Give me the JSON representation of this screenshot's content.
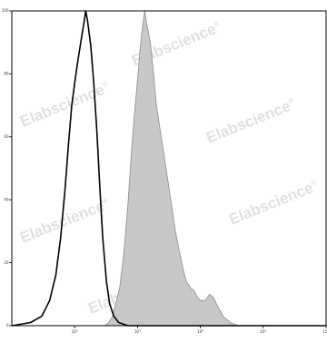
{
  "watermark": {
    "text": "Elabscience",
    "mark": "®",
    "color": "#d9d9d9"
  },
  "chart_data": {
    "type": "area",
    "title": "",
    "xlabel": "",
    "ylabel": "",
    "x_scale": "log",
    "xlim": [
      10,
      1000000
    ],
    "ylim": [
      0,
      100
    ],
    "y_ticks": [
      0,
      20,
      40,
      60,
      80,
      100
    ],
    "x_ticks": [
      100,
      1000,
      10000,
      100000,
      1000000
    ],
    "grid": false,
    "legend": "none",
    "series": [
      {
        "style": "outline",
        "color": "#000000",
        "points": [
          [
            10,
            0
          ],
          [
            20,
            1
          ],
          [
            30,
            3
          ],
          [
            40,
            8
          ],
          [
            50,
            16
          ],
          [
            60,
            28
          ],
          [
            70,
            43
          ],
          [
            80,
            58
          ],
          [
            90,
            70
          ],
          [
            100,
            77
          ],
          [
            110,
            83
          ],
          [
            125,
            90
          ],
          [
            140,
            96
          ],
          [
            150,
            100
          ],
          [
            160,
            97
          ],
          [
            180,
            89
          ],
          [
            200,
            78
          ],
          [
            225,
            62
          ],
          [
            250,
            45
          ],
          [
            280,
            28
          ],
          [
            320,
            14
          ],
          [
            360,
            7
          ],
          [
            420,
            3
          ],
          [
            500,
            1
          ],
          [
            700,
            0
          ],
          [
            1000000,
            0
          ]
        ]
      },
      {
        "style": "filled",
        "color": "#c8c8c8",
        "edge_color": "#8c8c8c",
        "points": [
          [
            300,
            0
          ],
          [
            350,
            1
          ],
          [
            400,
            3
          ],
          [
            450,
            7
          ],
          [
            520,
            12
          ],
          [
            600,
            22
          ],
          [
            700,
            38
          ],
          [
            800,
            55
          ],
          [
            900,
            68
          ],
          [
            1000,
            78
          ],
          [
            1100,
            88
          ],
          [
            1200,
            95
          ],
          [
            1300,
            100
          ],
          [
            1400,
            96
          ],
          [
            1600,
            90
          ],
          [
            1800,
            80
          ],
          [
            2000,
            70
          ],
          [
            2300,
            62
          ],
          [
            2600,
            55
          ],
          [
            3000,
            47
          ],
          [
            3500,
            38
          ],
          [
            4000,
            30
          ],
          [
            4600,
            24
          ],
          [
            5300,
            18
          ],
          [
            6000,
            14
          ],
          [
            7000,
            12
          ],
          [
            8000,
            11
          ],
          [
            9000,
            9
          ],
          [
            10000,
            8
          ],
          [
            12000,
            8
          ],
          [
            14000,
            10
          ],
          [
            16000,
            9
          ],
          [
            19000,
            6
          ],
          [
            23000,
            3
          ],
          [
            30000,
            1
          ],
          [
            40000,
            0
          ],
          [
            1000000,
            0
          ]
        ]
      }
    ]
  }
}
